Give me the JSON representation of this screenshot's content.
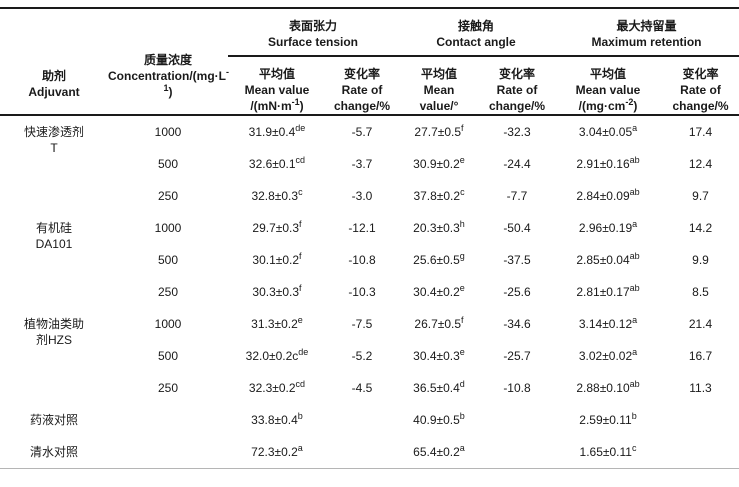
{
  "colors": {
    "text": "#1a1a1a",
    "rule_dark": "#1a1a1a",
    "rule_light": "#b5b5b5",
    "background": "#ffffff"
  },
  "header": {
    "adjuvant": {
      "zh": "助剂",
      "en": "Adjuvant"
    },
    "concentration": {
      "zh": "质量浓度",
      "en_pre": "Concentration/(mg·L",
      "en_sup": "-1",
      "en_post": ")"
    },
    "groups": [
      {
        "zh": "表面张力",
        "en": "Surface tension"
      },
      {
        "zh": "接触角",
        "en": "Contact angle"
      },
      {
        "zh": "最大持留量",
        "en": "Maximum retention"
      }
    ],
    "subs": [
      {
        "l1": "平均值",
        "l2": "Mean value",
        "l3_pre": "/(mN·m",
        "l3_sup": "-1",
        "l3_post": ")"
      },
      {
        "l1": "变化率",
        "l2": "Rate of",
        "l3_pre": "change/%",
        "l3_sup": "",
        "l3_post": ""
      },
      {
        "l1": "平均值",
        "l2": "Mean",
        "l3_pre": "value/°",
        "l3_sup": "",
        "l3_post": ""
      },
      {
        "l1": "变化率",
        "l2": "Rate of",
        "l3_pre": "change/%",
        "l3_sup": "",
        "l3_post": ""
      },
      {
        "l1": "平均值",
        "l2": "Mean value",
        "l3_pre": "/(mg·cm",
        "l3_sup": "-2",
        "l3_post": ")"
      },
      {
        "l1": "变化率",
        "l2": "Rate of",
        "l3_pre": "change/%",
        "l3_sup": "",
        "l3_post": ""
      }
    ]
  },
  "rows": [
    {
      "adj1": "快速渗透剂",
      "adj2": "T",
      "conc": "1000",
      "st_mean": "31.9±0.4",
      "st_sup": "de",
      "st_rate": "-5.7",
      "ca_mean": "27.7±0.5",
      "ca_sup": "f",
      "ca_rate": "-32.3",
      "mr_mean": "3.04±0.05",
      "mr_sup": "a",
      "mr_rate": "17.4"
    },
    {
      "conc": "500",
      "st_mean": "32.6±0.1",
      "st_sup": "cd",
      "st_rate": "-3.7",
      "ca_mean": "30.9±0.2",
      "ca_sup": "e",
      "ca_rate": "-24.4",
      "mr_mean": "2.91±0.16",
      "mr_sup": "ab",
      "mr_rate": "12.4"
    },
    {
      "conc": "250",
      "st_mean": "32.8±0.3",
      "st_sup": "c",
      "st_rate": "-3.0",
      "ca_mean": "37.8±0.2",
      "ca_sup": "c",
      "ca_rate": "-7.7",
      "mr_mean": "2.84±0.09",
      "mr_sup": "ab",
      "mr_rate": "9.7"
    },
    {
      "adj1": "有机硅",
      "adj2": "DA101",
      "conc": "1000",
      "st_mean": "29.7±0.3",
      "st_sup": "f",
      "st_rate": "-12.1",
      "ca_mean": "20.3±0.3",
      "ca_sup": "h",
      "ca_rate": "-50.4",
      "mr_mean": "2.96±0.19",
      "mr_sup": "a",
      "mr_rate": "14.2"
    },
    {
      "conc": "500",
      "st_mean": "30.1±0.2",
      "st_sup": "f",
      "st_rate": "-10.8",
      "ca_mean": "25.6±0.5",
      "ca_sup": "g",
      "ca_rate": "-37.5",
      "mr_mean": "2.85±0.04",
      "mr_sup": "ab",
      "mr_rate": "9.9"
    },
    {
      "conc": "250",
      "st_mean": "30.3±0.3",
      "st_sup": "f",
      "st_rate": "-10.3",
      "ca_mean": "30.4±0.2",
      "ca_sup": "e",
      "ca_rate": "-25.6",
      "mr_mean": "2.81±0.17",
      "mr_sup": "ab",
      "mr_rate": "8.5"
    },
    {
      "adj1": "植物油类助",
      "adj2": "剂HZS",
      "conc": "1000",
      "st_mean": "31.3±0.2",
      "st_sup": "e",
      "st_rate": "-7.5",
      "ca_mean": "26.7±0.5",
      "ca_sup": "f",
      "ca_rate": "-34.6",
      "mr_mean": "3.14±0.12",
      "mr_sup": "a",
      "mr_rate": "21.4"
    },
    {
      "conc": "500",
      "st_mean": "32.0±0.2c",
      "st_sup": "de",
      "st_rate": "-5.2",
      "ca_mean": "30.4±0.3",
      "ca_sup": "e",
      "ca_rate": "-25.7",
      "mr_mean": "3.02±0.02",
      "mr_sup": "a",
      "mr_rate": "16.7"
    },
    {
      "conc": "250",
      "st_mean": "32.3±0.2",
      "st_sup": "cd",
      "st_rate": "-4.5",
      "ca_mean": "36.5±0.4",
      "ca_sup": "d",
      "ca_rate": "-10.8",
      "mr_mean": "2.88±0.10",
      "mr_sup": "ab",
      "mr_rate": "11.3"
    },
    {
      "adj1": "药液对照",
      "conc": "",
      "st_mean": "33.8±0.4",
      "st_sup": "b",
      "st_rate": "",
      "ca_mean": "40.9±0.5",
      "ca_sup": "b",
      "ca_rate": "",
      "mr_mean": "2.59±0.11",
      "mr_sup": "b",
      "mr_rate": ""
    },
    {
      "adj1": "清水对照",
      "conc": "",
      "st_mean": "72.3±0.2",
      "st_sup": "a",
      "st_rate": "",
      "ca_mean": "65.4±0.2",
      "ca_sup": "a",
      "ca_rate": "",
      "mr_mean": "1.65±0.11",
      "mr_sup": "c",
      "mr_rate": ""
    }
  ]
}
